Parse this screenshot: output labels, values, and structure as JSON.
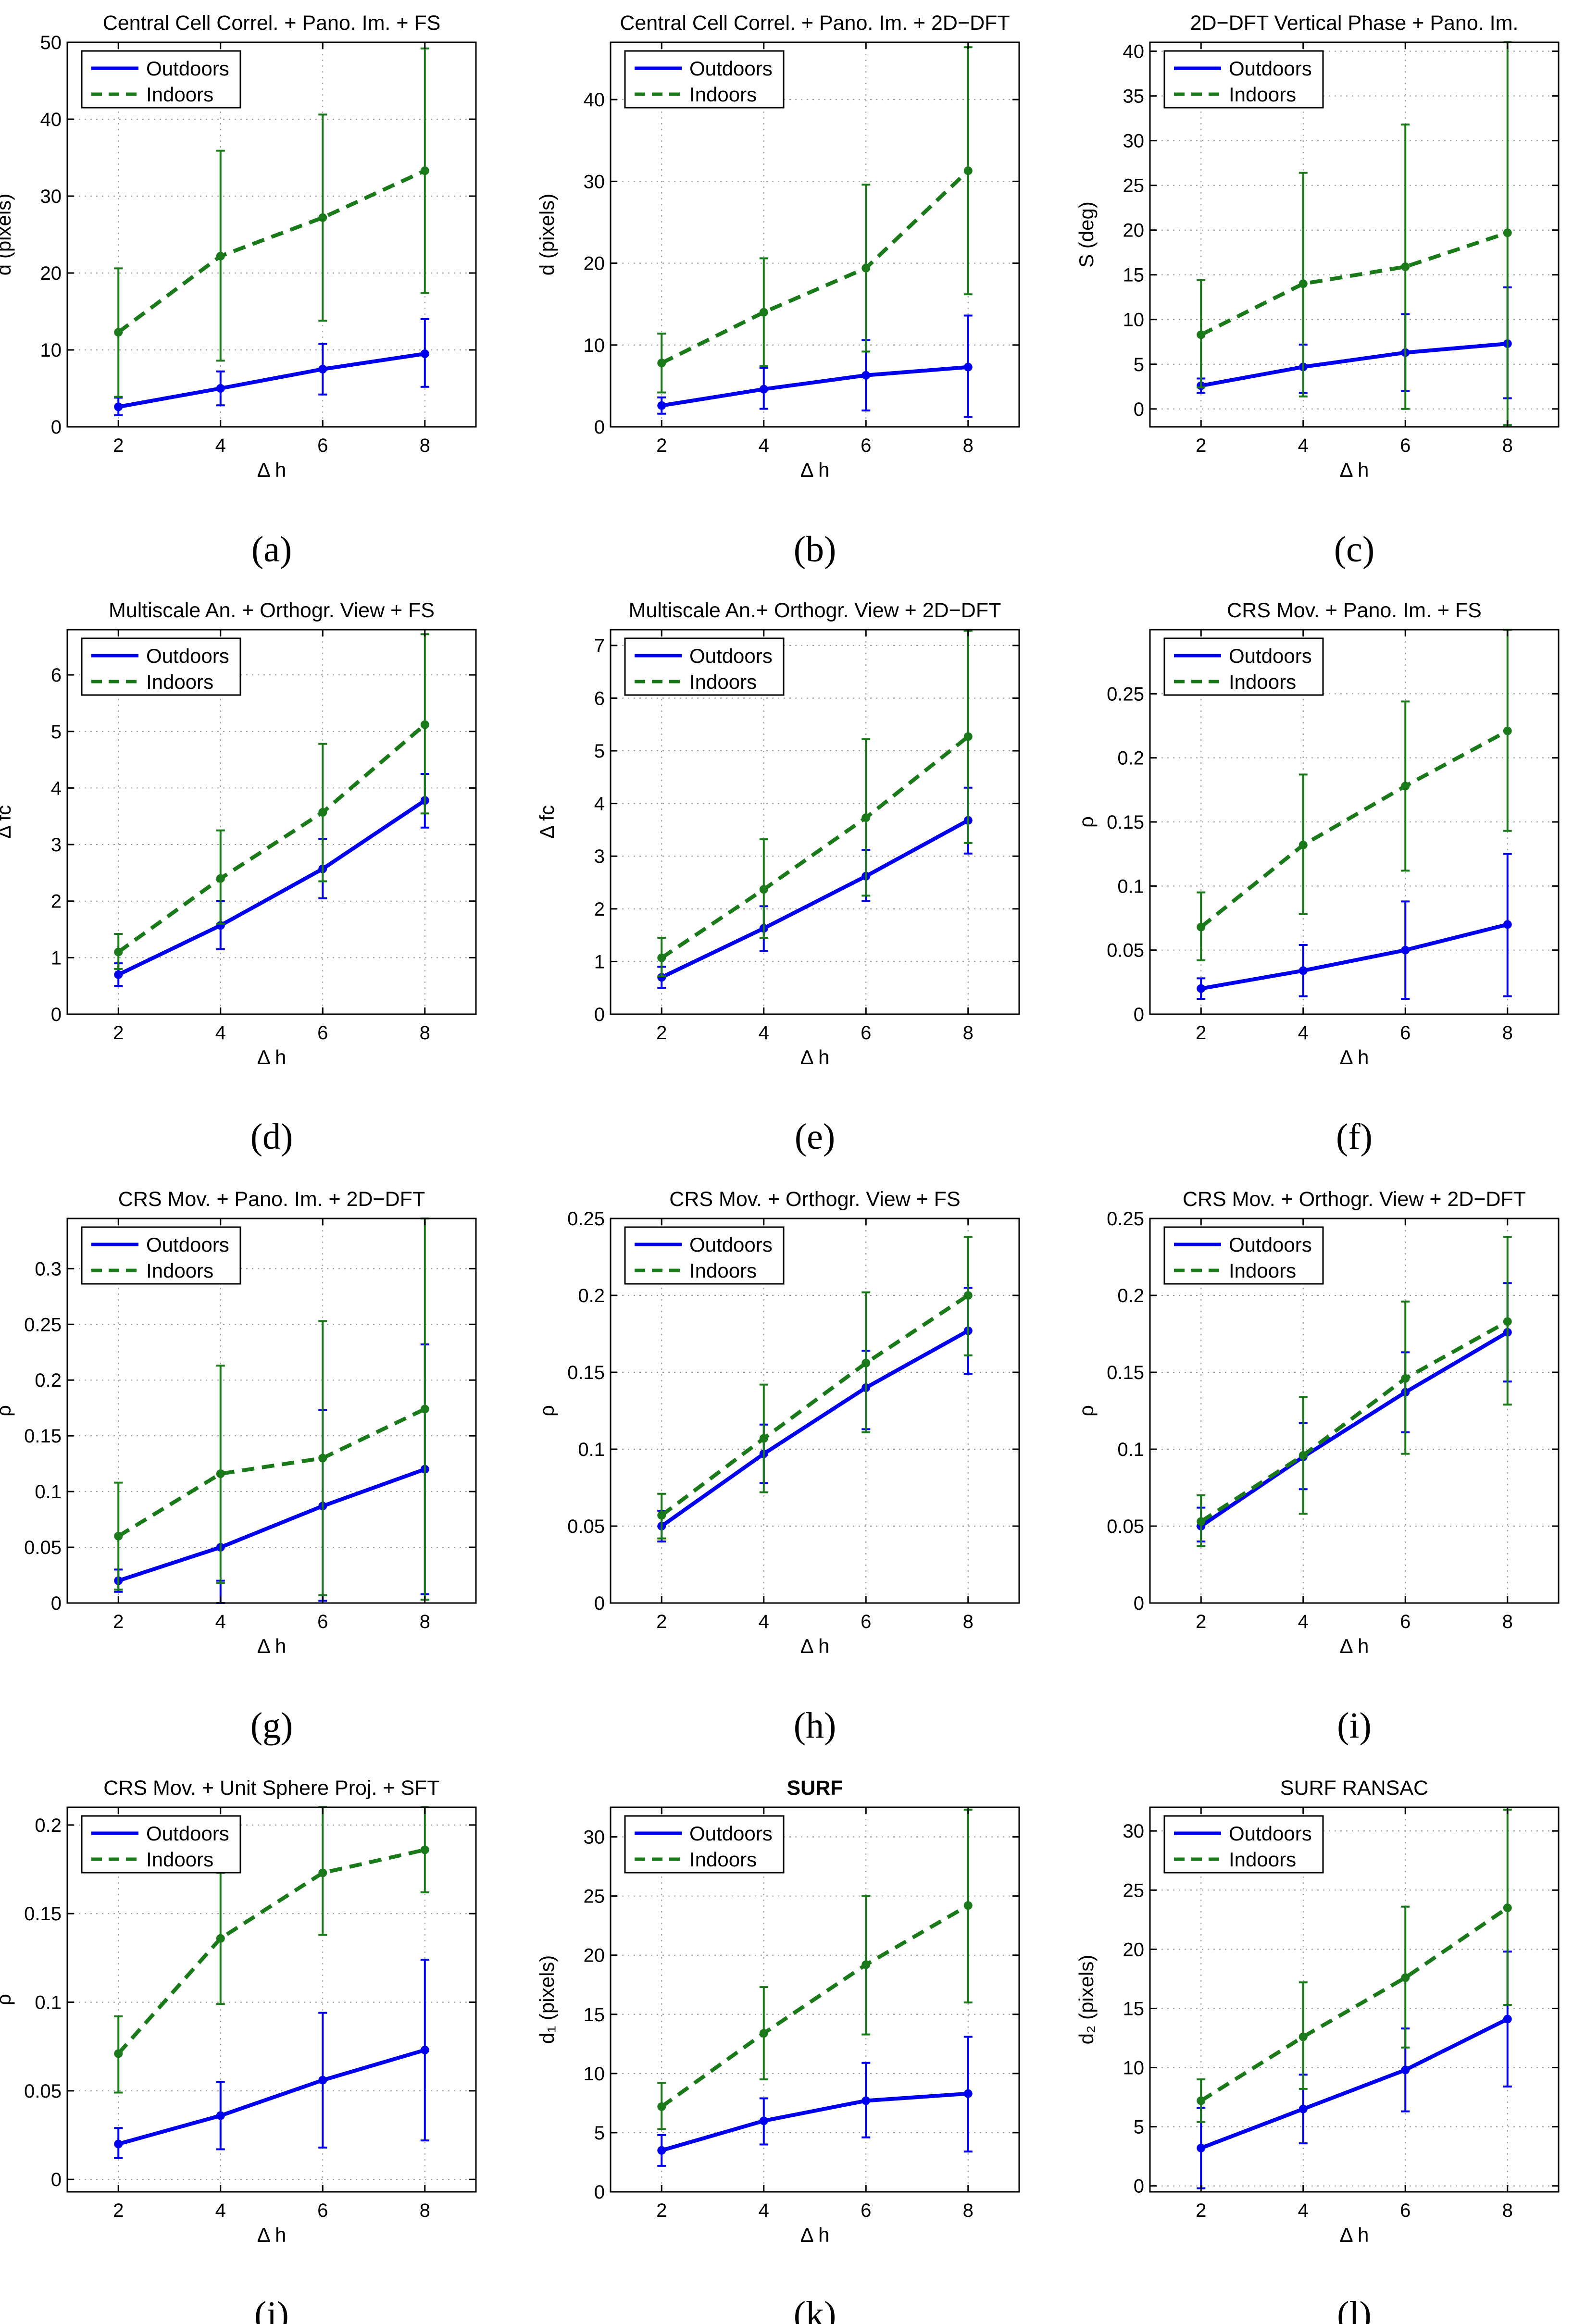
{
  "colors": {
    "outdoors": "#0000ee",
    "indoors": "#1a7a1a",
    "axis": "#000000",
    "grid": "#9a9a9a"
  },
  "chart_data": [
    {
      "label": "(a)",
      "type": "line",
      "title": "Central Cell Correl. + Pano. Im. + FS",
      "xlabel": "Δ h",
      "ylabel": "d (pixels)",
      "x": [
        2,
        4,
        6,
        8
      ],
      "xticks": [
        2,
        4,
        6,
        8
      ],
      "xlim": [
        1,
        9
      ],
      "ylim": [
        0,
        50
      ],
      "yticks": [
        0,
        10,
        20,
        30,
        40,
        50
      ],
      "grid": true,
      "legend_position": "top-left",
      "series": [
        {
          "name": "Outdoors",
          "values": [
            2.6,
            5.0,
            7.5,
            9.5
          ],
          "err_low": [
            1.5,
            2.8,
            4.2,
            5.2
          ],
          "err_high": [
            3.8,
            7.2,
            10.8,
            14.0
          ]
        },
        {
          "name": "Indoors",
          "values": [
            12.3,
            22.2,
            27.2,
            33.3
          ],
          "err_low": [
            3.9,
            8.6,
            13.8,
            17.4
          ],
          "err_high": [
            20.6,
            35.9,
            40.6,
            49.2
          ]
        }
      ]
    },
    {
      "label": "(b)",
      "type": "line",
      "title": "Central Cell Correl. + Pano. Im.  + 2D−DFT",
      "xlabel": "Δ h",
      "ylabel": "d (pixels)",
      "x": [
        2,
        4,
        6,
        8
      ],
      "xticks": [
        2,
        4,
        6,
        8
      ],
      "xlim": [
        1,
        9
      ],
      "ylim": [
        0,
        47
      ],
      "yticks": [
        0,
        10,
        20,
        30,
        40
      ],
      "grid": true,
      "legend_position": "top-left",
      "series": [
        {
          "name": "Outdoors",
          "values": [
            2.6,
            4.6,
            6.3,
            7.3
          ],
          "err_low": [
            1.6,
            2.2,
            2.0,
            1.2
          ],
          "err_high": [
            3.6,
            7.2,
            10.6,
            13.6
          ]
        },
        {
          "name": "Indoors",
          "values": [
            7.8,
            14.0,
            19.4,
            31.3
          ],
          "err_low": [
            4.2,
            7.4,
            9.2,
            16.2
          ],
          "err_high": [
            11.4,
            20.6,
            29.6,
            46.4
          ]
        }
      ]
    },
    {
      "label": "(c)",
      "type": "line",
      "title": "2D−DFT Vertical Phase + Pano. Im.",
      "xlabel": "Δ h",
      "ylabel": "S (deg)",
      "x": [
        2,
        4,
        6,
        8
      ],
      "xticks": [
        2,
        4,
        6,
        8
      ],
      "xlim": [
        1,
        9
      ],
      "ylim": [
        -2,
        41
      ],
      "yticks": [
        0,
        5,
        10,
        15,
        20,
        25,
        30,
        35,
        40
      ],
      "grid": true,
      "legend_position": "top-left",
      "series": [
        {
          "name": "Outdoors",
          "values": [
            2.6,
            4.7,
            6.3,
            7.3
          ],
          "err_low": [
            1.8,
            1.8,
            2.0,
            1.2
          ],
          "err_high": [
            3.4,
            7.2,
            10.6,
            13.6
          ]
        },
        {
          "name": "Indoors",
          "values": [
            8.3,
            14.0,
            15.9,
            19.7
          ],
          "err_low": [
            2.4,
            1.4,
            0.0,
            -1.8
          ],
          "err_high": [
            14.4,
            26.4,
            31.8,
            41.0
          ]
        }
      ]
    },
    {
      "label": "(d)",
      "type": "line",
      "title": "Multiscale An. + Orthogr. View + FS",
      "xlabel": "Δ h",
      "ylabel": "Δ fc",
      "x": [
        2,
        4,
        6,
        8
      ],
      "xticks": [
        2,
        4,
        6,
        8
      ],
      "xlim": [
        1,
        9
      ],
      "ylim": [
        0,
        6.8
      ],
      "yticks": [
        0,
        1,
        2,
        3,
        4,
        5,
        6
      ],
      "grid": true,
      "legend_position": "top-left",
      "series": [
        {
          "name": "Outdoors",
          "values": [
            0.7,
            1.57,
            2.57,
            3.78
          ],
          "err_low": [
            0.5,
            1.15,
            2.05,
            3.3
          ],
          "err_high": [
            0.9,
            2.0,
            3.1,
            4.25
          ]
        },
        {
          "name": "Indoors",
          "values": [
            1.1,
            2.4,
            3.57,
            5.12
          ],
          "err_low": [
            0.8,
            1.6,
            2.35,
            3.55
          ],
          "err_high": [
            1.42,
            3.25,
            4.78,
            6.72
          ]
        }
      ]
    },
    {
      "label": "(e)",
      "type": "line",
      "title": "Multiscale An.+ Orthogr. View + 2D−DFT",
      "xlabel": "Δ h",
      "ylabel": "Δ fc",
      "x": [
        2,
        4,
        6,
        8
      ],
      "xticks": [
        2,
        4,
        6,
        8
      ],
      "xlim": [
        1,
        9
      ],
      "ylim": [
        0,
        7.3
      ],
      "yticks": [
        0,
        1,
        2,
        3,
        4,
        5,
        6,
        7
      ],
      "grid": true,
      "legend_position": "top-left",
      "series": [
        {
          "name": "Outdoors",
          "values": [
            0.7,
            1.63,
            2.62,
            3.68
          ],
          "err_low": [
            0.5,
            1.2,
            2.15,
            3.05
          ],
          "err_high": [
            0.9,
            2.05,
            3.12,
            4.3
          ]
        },
        {
          "name": "Indoors",
          "values": [
            1.07,
            2.37,
            3.73,
            5.27
          ],
          "err_low": [
            0.72,
            1.45,
            2.25,
            3.25
          ],
          "err_high": [
            1.45,
            3.32,
            5.22,
            7.28
          ]
        }
      ]
    },
    {
      "label": "(f)",
      "type": "line",
      "title": "CRS Mov. + Pano. Im. + FS",
      "xlabel": "Δ h",
      "ylabel": "ρ",
      "x": [
        2,
        4,
        6,
        8
      ],
      "xticks": [
        2,
        4,
        6,
        8
      ],
      "xlim": [
        1,
        9
      ],
      "ylim": [
        0,
        0.3
      ],
      "yticks": [
        0,
        0.05,
        0.1,
        0.15,
        0.2,
        0.25
      ],
      "grid": true,
      "legend_position": "top-left",
      "series": [
        {
          "name": "Outdoors",
          "values": [
            0.02,
            0.034,
            0.05,
            0.07
          ],
          "err_low": [
            0.012,
            0.014,
            0.012,
            0.014
          ],
          "err_high": [
            0.028,
            0.054,
            0.088,
            0.125
          ]
        },
        {
          "name": "Indoors",
          "values": [
            0.068,
            0.132,
            0.178,
            0.221
          ],
          "err_low": [
            0.042,
            0.078,
            0.112,
            0.143
          ],
          "err_high": [
            0.095,
            0.187,
            0.244,
            0.3
          ]
        }
      ]
    },
    {
      "label": "(g)",
      "type": "line",
      "title": "CRS Mov. + Pano. Im. + 2D−DFT",
      "xlabel": "Δ h",
      "ylabel": "ρ",
      "x": [
        2,
        4,
        6,
        8
      ],
      "xticks": [
        2,
        4,
        6,
        8
      ],
      "xlim": [
        1,
        9
      ],
      "ylim": [
        0,
        0.345
      ],
      "yticks": [
        0,
        0.05,
        0.1,
        0.15,
        0.2,
        0.25,
        0.3
      ],
      "grid": true,
      "legend_position": "top-left",
      "series": [
        {
          "name": "Outdoors",
          "values": [
            0.02,
            0.05,
            0.087,
            0.12
          ],
          "err_low": [
            0.01,
            0.0,
            0.002,
            0.008
          ],
          "err_high": [
            0.03,
            0.02,
            0.173,
            0.232
          ]
        },
        {
          "name": "Indoors",
          "values": [
            0.06,
            0.116,
            0.13,
            0.174
          ],
          "err_low": [
            0.012,
            0.018,
            0.007,
            0.003
          ],
          "err_high": [
            0.108,
            0.213,
            0.253,
            0.345
          ]
        }
      ]
    },
    {
      "label": "(h)",
      "type": "line",
      "title": "CRS Mov. + Orthogr. View + FS",
      "xlabel": "Δ h",
      "ylabel": "ρ",
      "x": [
        2,
        4,
        6,
        8
      ],
      "xticks": [
        2,
        4,
        6,
        8
      ],
      "xlim": [
        1,
        9
      ],
      "ylim": [
        0,
        0.25
      ],
      "yticks": [
        0,
        0.05,
        0.1,
        0.15,
        0.2,
        0.25
      ],
      "grid": true,
      "legend_position": "top-left",
      "series": [
        {
          "name": "Outdoors",
          "values": [
            0.05,
            0.097,
            0.14,
            0.177
          ],
          "err_low": [
            0.04,
            0.078,
            0.113,
            0.149
          ],
          "err_high": [
            0.06,
            0.116,
            0.164,
            0.205
          ]
        },
        {
          "name": "Indoors",
          "values": [
            0.057,
            0.107,
            0.156,
            0.2
          ],
          "err_low": [
            0.042,
            0.072,
            0.111,
            0.161
          ],
          "err_high": [
            0.071,
            0.142,
            0.202,
            0.238
          ]
        }
      ]
    },
    {
      "label": "(i)",
      "type": "line",
      "title": "CRS Mov. + Orthogr. View + 2D−DFT",
      "xlabel": "Δ h",
      "ylabel": "ρ",
      "x": [
        2,
        4,
        6,
        8
      ],
      "xticks": [
        2,
        4,
        6,
        8
      ],
      "xlim": [
        1,
        9
      ],
      "ylim": [
        0,
        0.25
      ],
      "yticks": [
        0,
        0.05,
        0.1,
        0.15,
        0.2,
        0.25
      ],
      "grid": true,
      "legend_position": "top-left",
      "series": [
        {
          "name": "Outdoors",
          "values": [
            0.05,
            0.095,
            0.137,
            0.176
          ],
          "err_low": [
            0.04,
            0.074,
            0.111,
            0.144
          ],
          "err_high": [
            0.062,
            0.117,
            0.163,
            0.208
          ]
        },
        {
          "name": "Indoors",
          "values": [
            0.053,
            0.096,
            0.146,
            0.183
          ],
          "err_low": [
            0.037,
            0.058,
            0.097,
            0.129
          ],
          "err_high": [
            0.07,
            0.134,
            0.196,
            0.238
          ]
        }
      ]
    },
    {
      "label": "(j)",
      "type": "line",
      "title": "CRS Mov. + Unit Sphere Proj. + SFT",
      "xlabel": "Δ h",
      "ylabel": "ρ",
      "x": [
        2,
        4,
        6,
        8
      ],
      "xticks": [
        2,
        4,
        6,
        8
      ],
      "xlim": [
        1,
        9
      ],
      "ylim": [
        -0.007,
        0.21
      ],
      "yticks": [
        0,
        0.05,
        0.1,
        0.15,
        0.2
      ],
      "grid": true,
      "legend_position": "top-left",
      "series": [
        {
          "name": "Outdoors",
          "values": [
            0.02,
            0.036,
            0.056,
            0.073
          ],
          "err_low": [
            0.012,
            0.017,
            0.018,
            0.022
          ],
          "err_high": [
            0.029,
            0.055,
            0.094,
            0.124
          ]
        },
        {
          "name": "Indoors",
          "values": [
            0.071,
            0.136,
            0.173,
            0.186
          ],
          "err_low": [
            0.049,
            0.099,
            0.138,
            0.162
          ],
          "err_high": [
            0.092,
            0.173,
            0.21,
            0.21
          ]
        }
      ]
    },
    {
      "label": "(k)",
      "type": "line",
      "title": "SURF",
      "xlabel": "Δ h",
      "ylabel": "d₁ (pixels)",
      "x": [
        2,
        4,
        6,
        8
      ],
      "xticks": [
        2,
        4,
        6,
        8
      ],
      "xlim": [
        1,
        9
      ],
      "ylim": [
        0,
        32.5
      ],
      "yticks": [
        0,
        5,
        10,
        15,
        20,
        25,
        30
      ],
      "grid": true,
      "legend_position": "top-left",
      "series": [
        {
          "name": "Outdoors",
          "values": [
            3.5,
            6.0,
            7.7,
            8.3
          ],
          "err_low": [
            2.2,
            4.0,
            4.6,
            3.4
          ],
          "err_high": [
            4.8,
            7.9,
            10.9,
            13.1
          ]
        },
        {
          "name": "Indoors",
          "values": [
            7.2,
            13.4,
            19.2,
            24.2
          ],
          "err_low": [
            5.3,
            9.5,
            13.3,
            16.0
          ],
          "err_high": [
            9.2,
            17.3,
            25.0,
            32.3
          ]
        }
      ]
    },
    {
      "label": "(l)",
      "type": "line",
      "title": "SURF RANSAC",
      "xlabel": "Δ h",
      "ylabel": "d₂ (pixels)",
      "x": [
        2,
        4,
        6,
        8
      ],
      "xticks": [
        2,
        4,
        6,
        8
      ],
      "xlim": [
        1,
        9
      ],
      "ylim": [
        -0.5,
        32
      ],
      "yticks": [
        0,
        5,
        10,
        15,
        20,
        25,
        30
      ],
      "grid": true,
      "legend_position": "top-left",
      "series": [
        {
          "name": "Outdoors",
          "values": [
            3.2,
            6.5,
            9.8,
            14.1
          ],
          "err_low": [
            -0.2,
            3.6,
            6.3,
            8.4
          ],
          "err_high": [
            6.6,
            9.4,
            13.3,
            19.8
          ]
        },
        {
          "name": "Indoors",
          "values": [
            7.2,
            12.6,
            17.6,
            23.5
          ],
          "err_low": [
            5.4,
            8.2,
            11.7,
            15.3
          ],
          "err_high": [
            9.0,
            17.2,
            23.6,
            31.8
          ]
        }
      ]
    }
  ]
}
